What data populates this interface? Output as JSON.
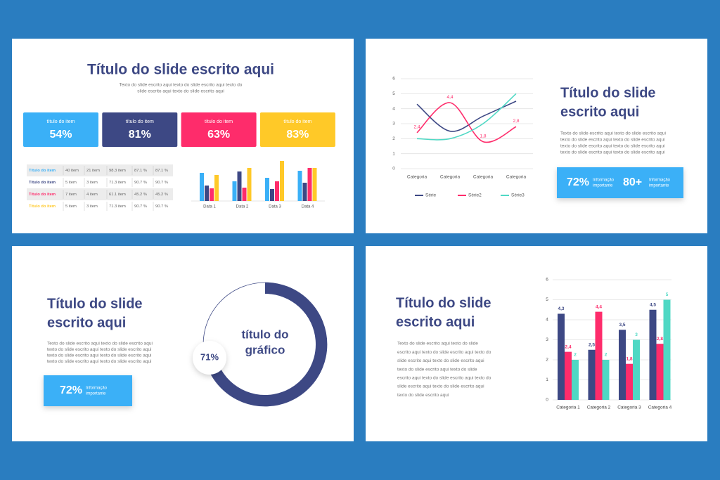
{
  "slides": [
    {
      "title": [
        "Título do slide escrito aqui"
      ],
      "text": [
        "Texto do slide escrito aqui texto do slide escrito aqui texto do",
        "slide escrito aqui texto do slide escrito aqui"
      ],
      "cards": [
        {
          "label": "título do item",
          "value": "54%",
          "color": "#3ab0f7"
        },
        {
          "label": "título do item",
          "value": "81%",
          "color": "#3d4884"
        },
        {
          "label": "título do item",
          "value": "63%",
          "color": "#fe2c6b"
        },
        {
          "label": "título do item",
          "value": "83%",
          "color": "#ffc928"
        }
      ],
      "table": {
        "row_colors": [
          "#3ab0f7",
          "#3d4884",
          "#fe2c6b",
          "#ffc928"
        ],
        "rows": [
          [
            "Título do item",
            "40 item",
            "21 item",
            "98.3 item",
            "87.1 %",
            "87.1 %"
          ],
          [
            "Título do item",
            "5 item",
            "3 item",
            "71.3 item",
            "90.7 %",
            "90.7 %"
          ],
          [
            "Título do item",
            "7 item",
            "4 item",
            "61.1 item",
            "45.2 %",
            "45.2 %"
          ],
          [
            "Título do item",
            "5 item",
            "3 item",
            "71.3 item",
            "90.7 %",
            "90.7 %"
          ]
        ]
      },
      "chart": {
        "type": "bar",
        "categories": [
          "Data 1",
          "Data 2",
          "Data 3",
          "Data 4"
        ],
        "ylim": [
          0,
          60
        ],
        "series": [
          {
            "color": "#3ab0f7",
            "values": [
              40,
              28,
              33,
              43
            ]
          },
          {
            "color": "#3d4884",
            "values": [
              22,
              42,
              17,
              26
            ]
          },
          {
            "color": "#fe2c6b",
            "values": [
              18,
              19,
              28,
              47
            ]
          },
          {
            "color": "#ffc928",
            "values": [
              37,
              47,
              57,
              47
            ]
          }
        ]
      }
    },
    {
      "chart": {
        "type": "line",
        "categories": [
          "Categoria",
          "Categoria",
          "Categoria",
          "Categoria"
        ],
        "ylim": [
          0,
          6
        ],
        "yticks": [
          0,
          1,
          2,
          3,
          4,
          5,
          6
        ],
        "grid": true,
        "series": [
          {
            "name": "Série",
            "color": "#3d4884",
            "values": [
              4.3,
              2.5,
              3.5,
              4.5
            ]
          },
          {
            "name": "Série2",
            "color": "#fe2c6b",
            "values": [
              2.4,
              4.4,
              1.8,
              2.8
            ],
            "value_labels": [
              "2,4",
              "4,4",
              "1,8",
              "2,8"
            ]
          },
          {
            "name": "Série3",
            "color": "#4fd8c4",
            "values": [
              2,
              2,
              3,
              5
            ]
          }
        ]
      },
      "title": [
        "Título do slide",
        "escrito aqui"
      ],
      "text": [
        "Texto do slide escrito aqui texto do slide escrito aqui",
        "texto do slide escrito aqui texto do slide escrito aqui",
        "texto do slide escrito aqui texto do slide escrito aqui",
        "texto do slide escrito aqui texto do slide escrito aqui"
      ],
      "stats": [
        {
          "value": "72%",
          "label": [
            "Informação",
            "importante"
          ]
        },
        {
          "value": "80+",
          "label": [
            "Informação",
            "importante"
          ]
        }
      ]
    },
    {
      "title": [
        "Título do slide",
        "escrito aqui"
      ],
      "text": [
        "Texto do slide escrito aqui texto do slide escrito aqui",
        "texto do slide escrito aqui texto do slide escrito aqui",
        "texto do slide escrito aqui texto do slide escrito aqui",
        "texto do slide escrito aqui texto do slide escrito aqui"
      ],
      "stats": [
        {
          "value": "72%",
          "label": [
            "Informação",
            "importante"
          ]
        }
      ],
      "donut": {
        "type": "pie",
        "value": 71,
        "value_label": "71%",
        "color": "#3d4884",
        "title": [
          "título do",
          "gráfico"
        ]
      }
    },
    {
      "title": [
        "Título do slide",
        "escrito aqui"
      ],
      "text": [
        "Texto do slide escrito aqui texto do slide",
        "escrito aqui texto do slide escrito aqui texto do",
        "slide escrito aqui texto do slide escrito aqui",
        "texto do slide escrito aqui texto do slide",
        "escrito aqui texto do slide escrito aqui texto do",
        "slide escrito aqui texto do slide escrito aqui",
        "texto do slide escrito aqui"
      ],
      "chart": {
        "type": "bar",
        "categories": [
          "Categoria 1",
          "Categoria 2",
          "Categoria 3",
          "Categoria 4"
        ],
        "ylim": [
          0,
          6
        ],
        "yticks": [
          0,
          1,
          2,
          3,
          4,
          5,
          6
        ],
        "grid": true,
        "series": [
          {
            "color": "#3d4884",
            "values": [
              4.3,
              2.5,
              3.5,
              4.5
            ],
            "value_labels": [
              "4,3",
              "2,5",
              "3,5",
              "4,5"
            ]
          },
          {
            "color": "#fe2c6b",
            "values": [
              2.4,
              4.4,
              1.8,
              2.8
            ],
            "value_labels": [
              "2,4",
              "4,4",
              "1,8",
              "2,8"
            ]
          },
          {
            "color": "#4fd8c4",
            "values": [
              2,
              2,
              3,
              5
            ]
          }
        ]
      }
    }
  ]
}
